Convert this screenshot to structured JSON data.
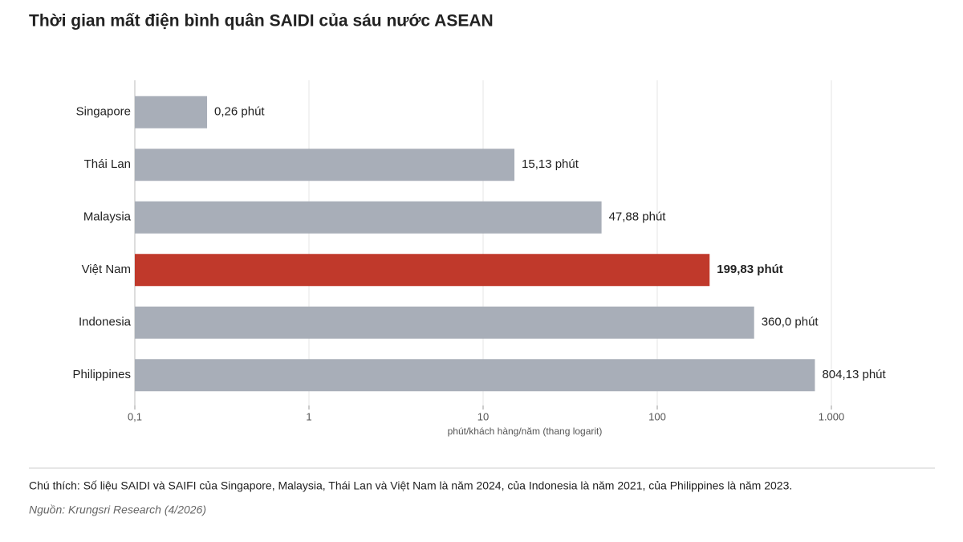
{
  "chart_data": {
    "type": "bar",
    "orientation": "horizontal",
    "title": "Thời gian mất điện bình quân SAIDI của sáu nước ASEAN",
    "categories": [
      "Singapore",
      "Thái Lan",
      "Malaysia",
      "Việt Nam",
      "Indonesia",
      "Philippines"
    ],
    "values": [
      0.26,
      15.13,
      47.88,
      199.83,
      360.0,
      804.13
    ],
    "value_labels": [
      "0,26 phút",
      "15,13 phút",
      "47,88 phút",
      "199,83 phút",
      "360,0 phút",
      "804,13 phút"
    ],
    "color": "#a8aeb8",
    "colors": [
      "#a8aeb8",
      "#a8aeb8",
      "#a8aeb8",
      "#c0392b",
      "#a8aeb8",
      "#a8aeb8"
    ],
    "xlim": [
      0.1,
      1000
    ],
    "log_x": true,
    "grid": true,
    "xticks": [
      {
        "value": 0.1,
        "label": "0,1"
      },
      1,
      10,
      100,
      {
        "value": 1000,
        "label": "1.000"
      }
    ],
    "xlabel": "phút/khách hàng/năm (thang logarit)",
    "note": "Chú thích: Số liệu SAIDI và SAIFI của Singapore, Malaysia, Thái Lan và Việt Nam là năm 2024, của Indonesia là năm 2021, của Philippines là năm 2023.",
    "source": "Nguồn: Krungsri Research (4/2026)"
  }
}
